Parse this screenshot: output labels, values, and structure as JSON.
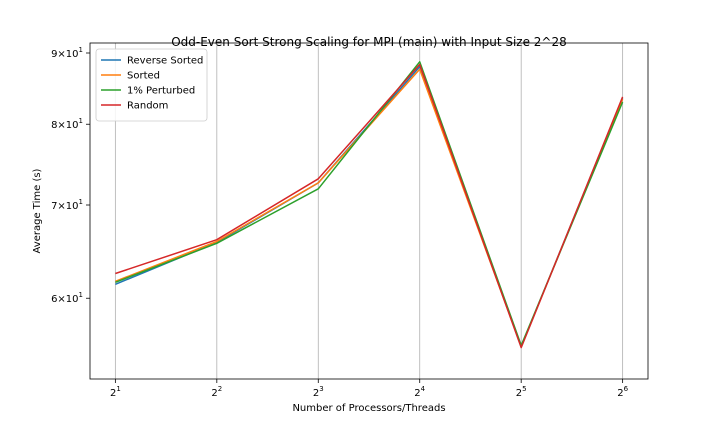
{
  "chart_data": {
    "type": "line",
    "title": "Odd-Even Sort Strong Scaling for MPI (main) with Input Size 2^28",
    "xlabel": "Number of Processors/Threads",
    "ylabel": "Average Time (s)",
    "x": [
      2,
      4,
      8,
      16,
      32,
      64
    ],
    "x_ticks": [
      {
        "base": "2",
        "exp": "1"
      },
      {
        "base": "2",
        "exp": "2"
      },
      {
        "base": "2",
        "exp": "3"
      },
      {
        "base": "2",
        "exp": "4"
      },
      {
        "base": "2",
        "exp": "5"
      },
      {
        "base": "2",
        "exp": "6"
      }
    ],
    "x_scale": "log2",
    "y_scale": "log",
    "ylim": [
      52.5,
      91.5
    ],
    "y_ticks": [
      {
        "value": 60,
        "mant": "6",
        "base": "10",
        "exp": "1"
      },
      {
        "value": 70,
        "mant": "7",
        "base": "10",
        "exp": "1"
      },
      {
        "value": 80,
        "mant": "8",
        "base": "10",
        "exp": "1"
      },
      {
        "value": 90,
        "mant": "9",
        "base": "10",
        "exp": "1"
      }
    ],
    "grid": "x-axis vertical lines",
    "legend_position": "top-left",
    "series": [
      {
        "name": "Reverse Sorted",
        "color": "#1f77b4",
        "values": [
          61.4,
          65.8,
          72.6,
          88.0,
          55.4,
          83.5
        ]
      },
      {
        "name": "Sorted",
        "color": "#ff7f0e",
        "values": [
          61.7,
          65.9,
          72.6,
          87.6,
          55.4,
          83.4
        ]
      },
      {
        "name": "1% Perturbed",
        "color": "#2ca02c",
        "values": [
          61.6,
          65.7,
          71.9,
          88.7,
          55.5,
          83.0
        ]
      },
      {
        "name": "Random",
        "color": "#d62728",
        "values": [
          62.5,
          66.1,
          73.1,
          88.3,
          55.3,
          83.7
        ]
      }
    ]
  }
}
